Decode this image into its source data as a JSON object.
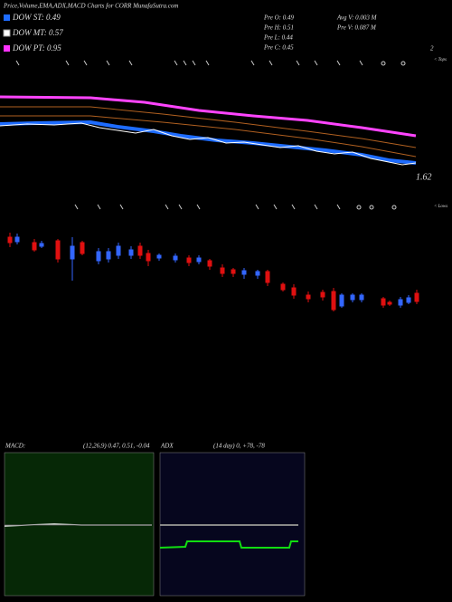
{
  "header": {
    "title": "Price,Volume,EMA,ADX,MACD Charts for CORR MunafaSutra.com"
  },
  "legend": [
    "DOW ST: 0.49",
    "DOW MT: 0.57",
    "DOW PT: 0.95"
  ],
  "info": [
    "Pre O: 0.49",
    "Pre H: 0.51",
    "Pre L: 0.44",
    "Pre C: 0.45",
    "Avg V: 0.003 M",
    "Pre V: 0.087 M"
  ],
  "price_panel": {
    "top_value": "2",
    "last_price": "1.62",
    "tops_label": "< Tops",
    "lows_label": "< Lows"
  },
  "macd": {
    "label": "MACD:",
    "params": "(12,26,9) 0.47, 0.51, -0.04"
  },
  "adx": {
    "label": "ADX",
    "params": "(14 day) 0, +78, -78"
  }
}
